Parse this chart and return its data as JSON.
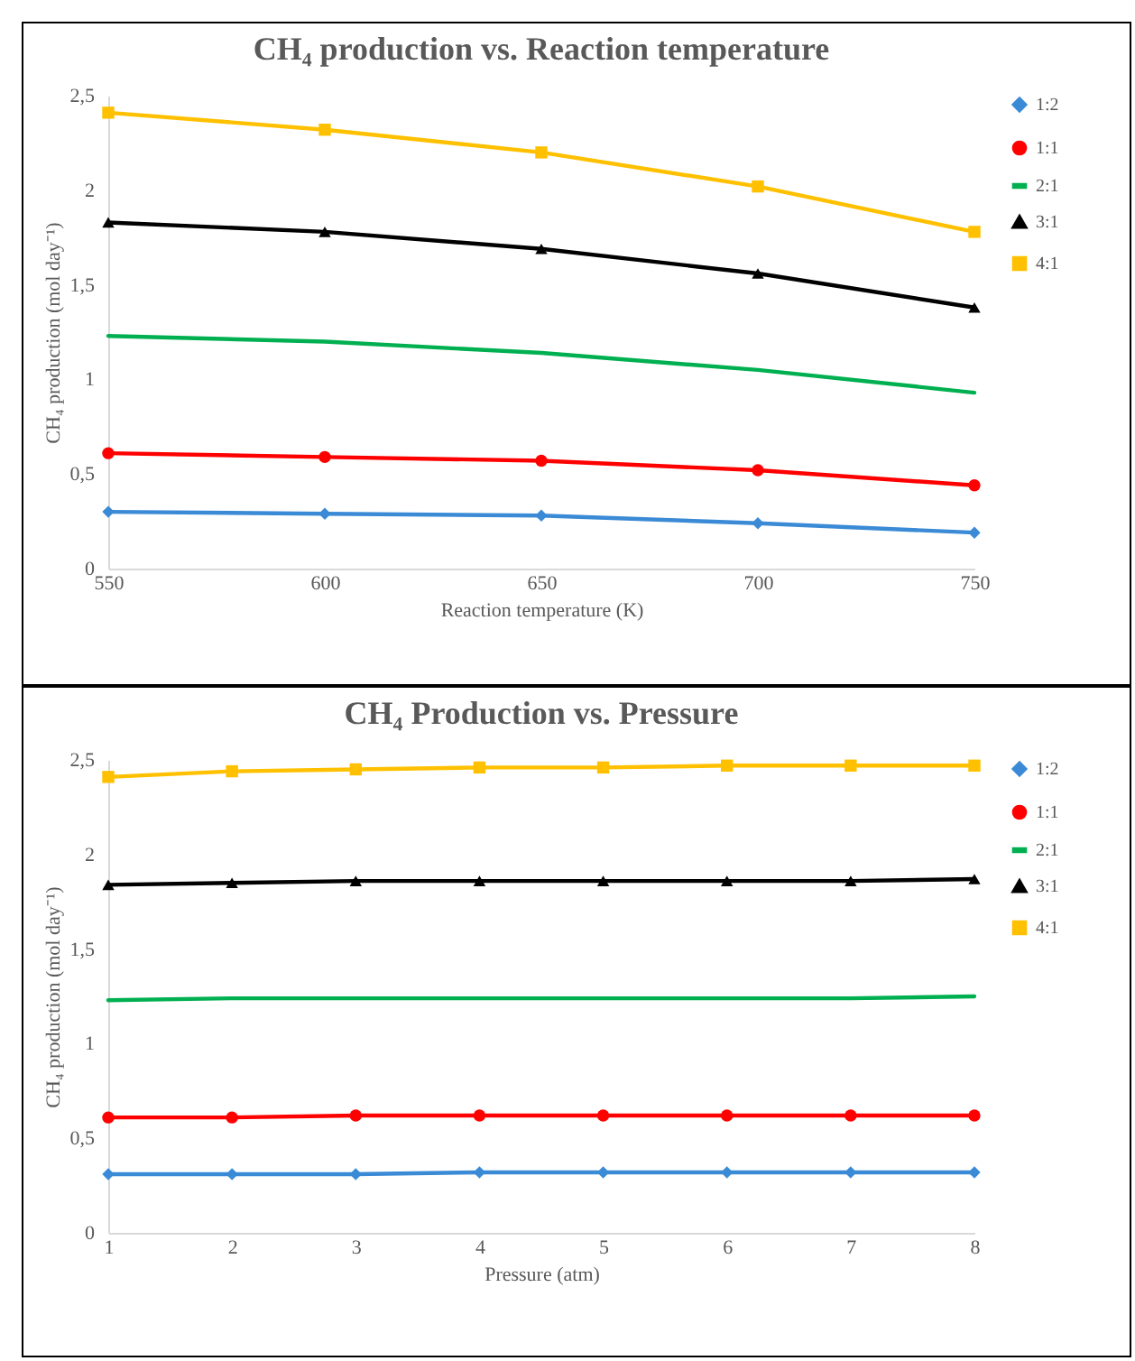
{
  "chart_data": [
    {
      "type": "line",
      "title": "CH₄ production vs. Reaction temperature",
      "xlabel": "Reaction temperature (K)",
      "ylabel": "CH₄ production (mol day⁻¹)",
      "x": [
        550,
        600,
        650,
        700,
        750
      ],
      "xlim": [
        550,
        750
      ],
      "xticks": [
        550,
        600,
        650,
        700,
        750
      ],
      "ylim": [
        0,
        2.5
      ],
      "yticks": [
        0,
        {
          "value": 0.5,
          "label": "0,5"
        },
        1,
        {
          "value": 1.5,
          "label": "1,5"
        },
        2,
        {
          "value": 2.5,
          "label": "2,5"
        }
      ],
      "legend": "right",
      "grid": false,
      "series": [
        {
          "name": "1:2",
          "color": "#3a8ad6",
          "marker": "diamond",
          "values": [
            0.3,
            0.29,
            0.28,
            0.24,
            0.19
          ]
        },
        {
          "name": "1:1",
          "color": "#ff0000",
          "marker": "circle",
          "values": [
            0.61,
            0.59,
            0.57,
            0.52,
            0.44
          ]
        },
        {
          "name": "2:1",
          "color": "#00b050",
          "marker": "none",
          "values": [
            1.23,
            1.2,
            1.14,
            1.05,
            0.93
          ]
        },
        {
          "name": "3:1",
          "color": "#000000",
          "marker": "triangle",
          "values": [
            1.83,
            1.78,
            1.69,
            1.56,
            1.38
          ]
        },
        {
          "name": "4:1",
          "color": "#ffc000",
          "marker": "square",
          "values": [
            2.41,
            2.32,
            2.2,
            2.02,
            1.78
          ]
        }
      ]
    },
    {
      "type": "line",
      "title": "CH₄ Production vs. Pressure",
      "xlabel": "Pressure (atm)",
      "ylabel": "CH₄ production (mol day⁻¹)",
      "x": [
        1,
        2,
        3,
        4,
        5,
        6,
        7,
        8
      ],
      "xlim": [
        1,
        8
      ],
      "xticks": [
        1,
        2,
        3,
        4,
        5,
        6,
        7,
        8
      ],
      "ylim": [
        0,
        2.5
      ],
      "yticks": [
        0,
        {
          "value": 0.5,
          "label": "0,5"
        },
        1,
        {
          "value": 1.5,
          "label": "1,5"
        },
        2,
        {
          "value": 2.5,
          "label": "2,5"
        }
      ],
      "legend": "right",
      "grid": false,
      "series": [
        {
          "name": "1:2",
          "color": "#3a8ad6",
          "marker": "diamond",
          "values": [
            0.31,
            0.31,
            0.31,
            0.32,
            0.32,
            0.32,
            0.32,
            0.32
          ]
        },
        {
          "name": "1:1",
          "color": "#ff0000",
          "marker": "circle",
          "values": [
            0.61,
            0.61,
            0.62,
            0.62,
            0.62,
            0.62,
            0.62,
            0.62
          ]
        },
        {
          "name": "2:1",
          "color": "#00b050",
          "marker": "none",
          "values": [
            1.23,
            1.24,
            1.24,
            1.24,
            1.24,
            1.24,
            1.24,
            1.25
          ]
        },
        {
          "name": "3:1",
          "color": "#000000",
          "marker": "triangle",
          "values": [
            1.84,
            1.85,
            1.86,
            1.86,
            1.86,
            1.86,
            1.86,
            1.87
          ]
        },
        {
          "name": "4:1",
          "color": "#ffc000",
          "marker": "square",
          "values": [
            2.41,
            2.44,
            2.45,
            2.46,
            2.46,
            2.47,
            2.47,
            2.47
          ]
        }
      ]
    }
  ]
}
